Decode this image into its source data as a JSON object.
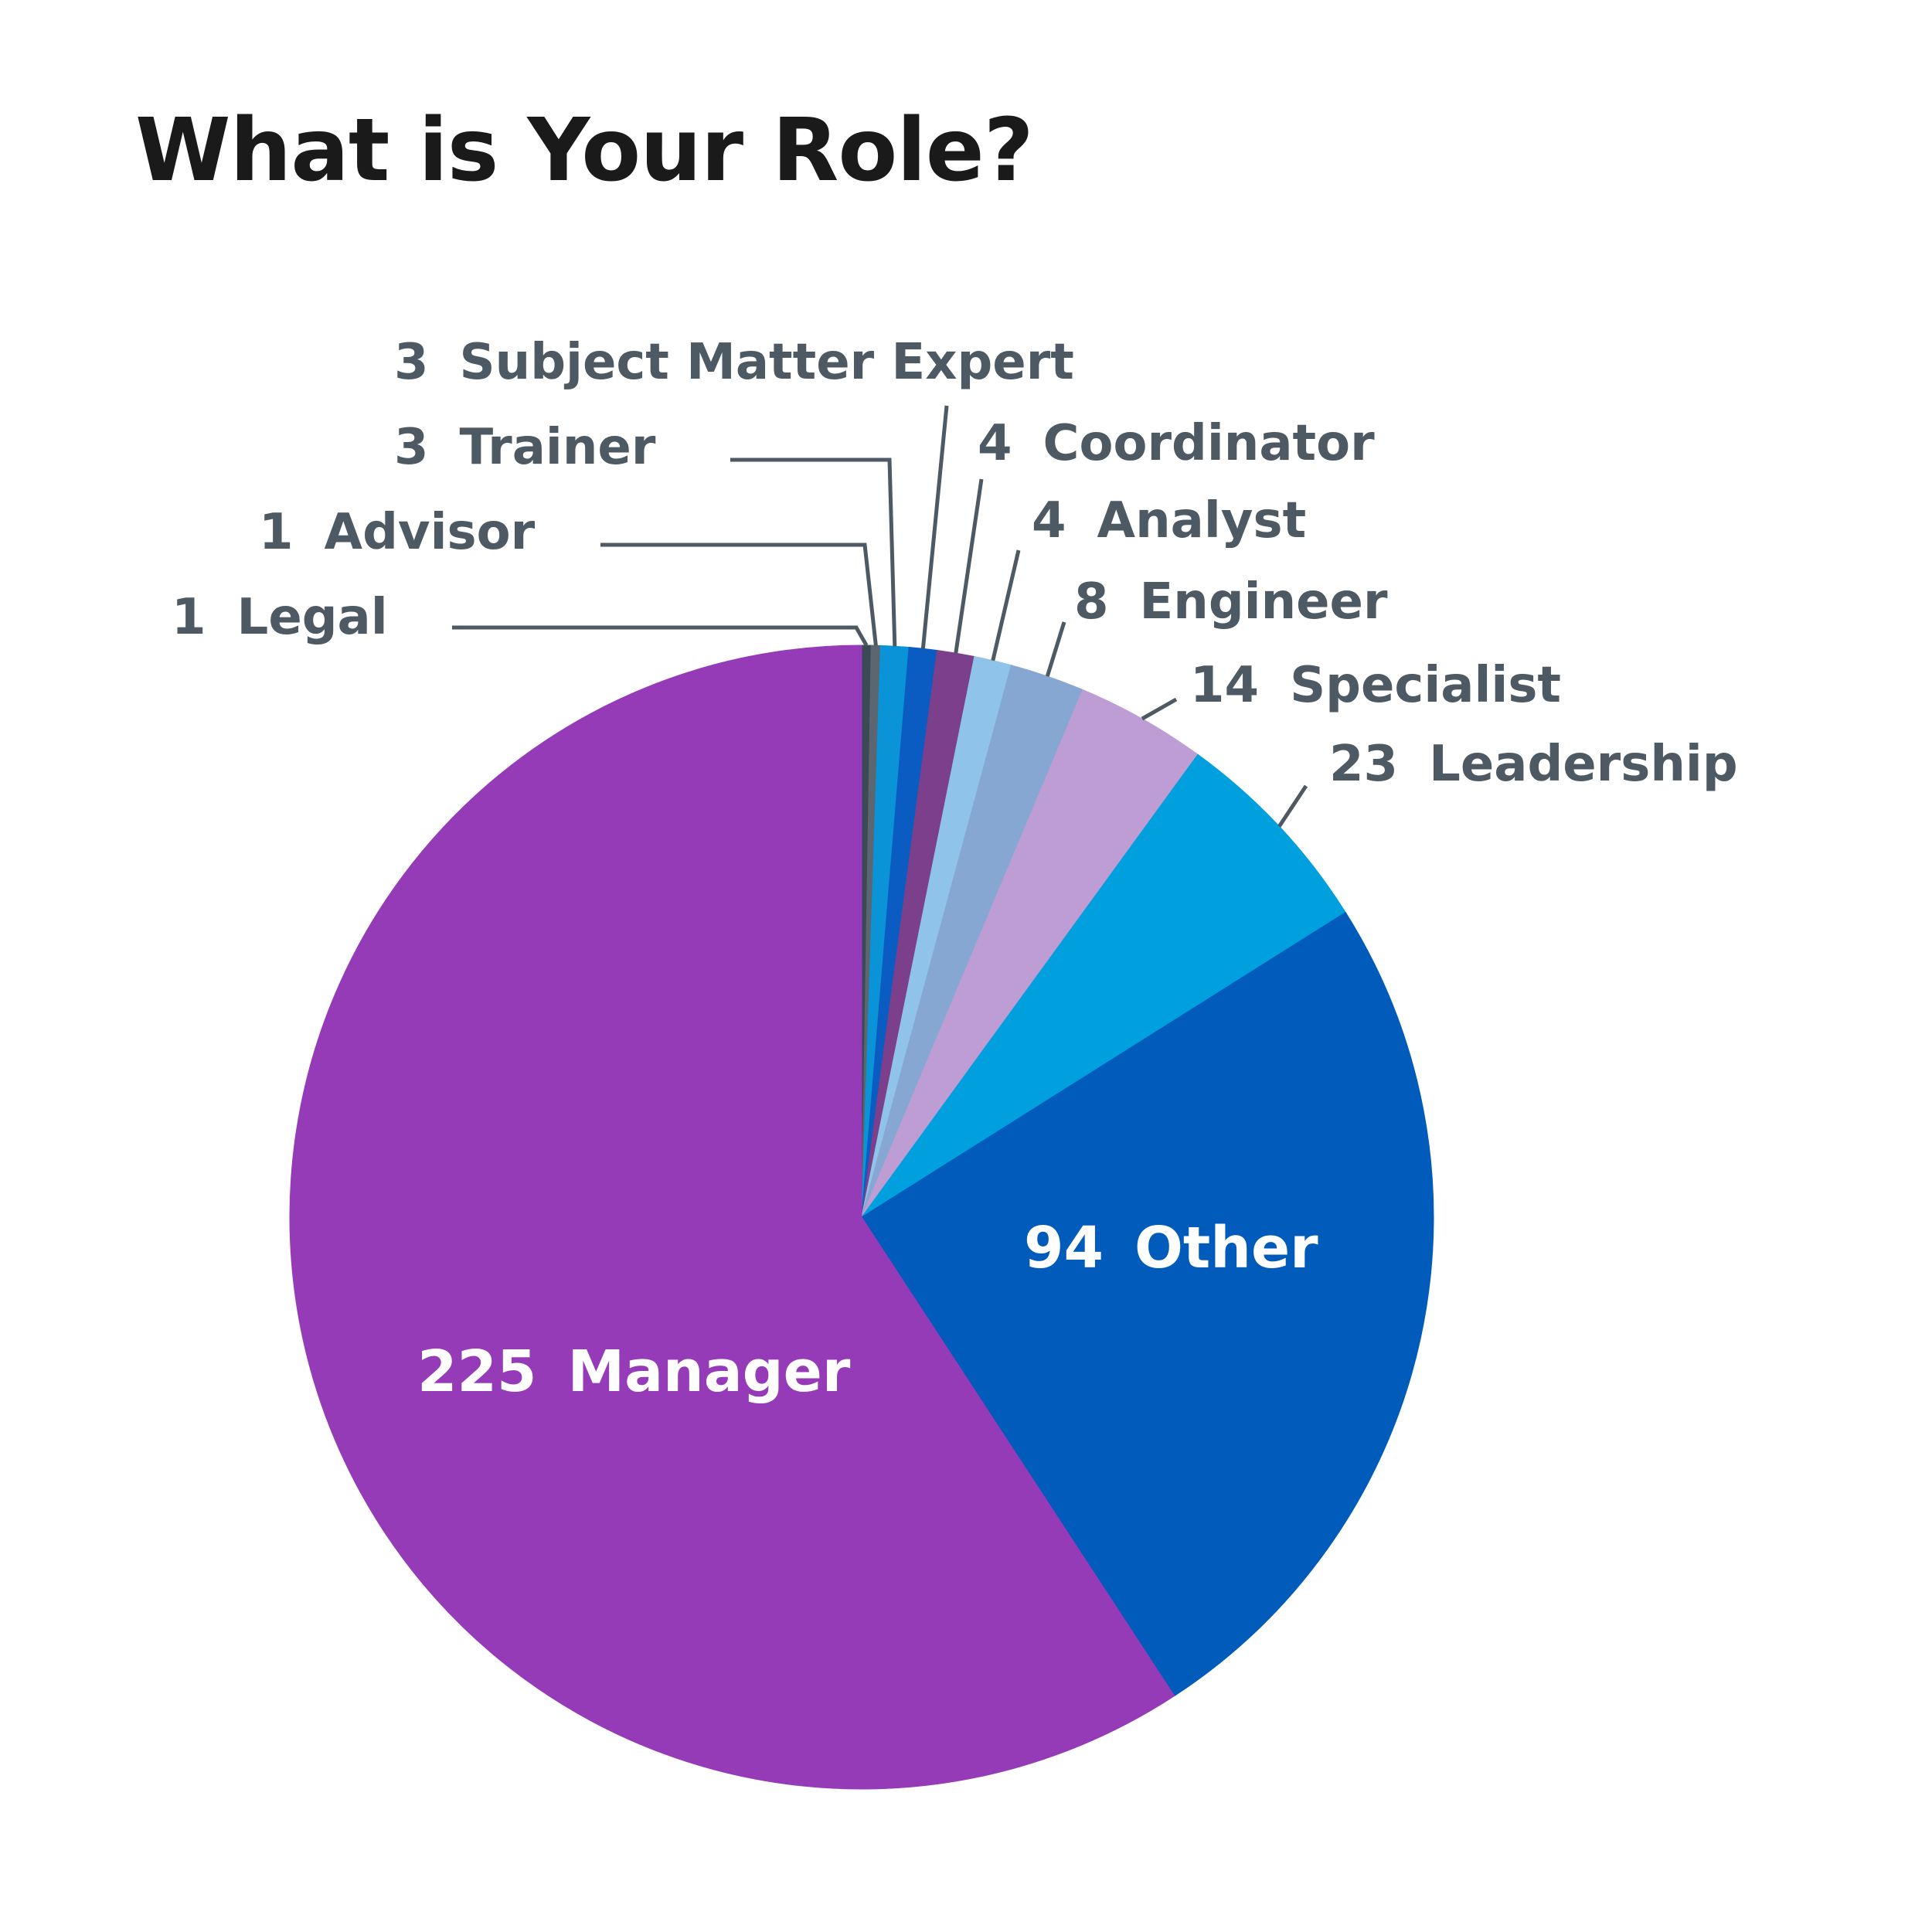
{
  "chart_data": {
    "type": "pie",
    "title": "What is Your Role?",
    "slices": [
      {
        "label": "Legal",
        "value": 1,
        "color": "#3b4a56"
      },
      {
        "label": "Advisor",
        "value": 1,
        "color": "#5c6670"
      },
      {
        "label": "Trainer",
        "value": 3,
        "color": "#0a93d6"
      },
      {
        "label": "Subject Matter Expert",
        "value": 3,
        "color": "#0a5cc2"
      },
      {
        "label": "Coordinator",
        "value": 4,
        "color": "#7b3f8c"
      },
      {
        "label": "Analyst",
        "value": 4,
        "color": "#8fc3ea"
      },
      {
        "label": "Engineer",
        "value": 8,
        "color": "#87a7d3"
      },
      {
        "label": "Specialist",
        "value": 14,
        "color": "#bd9dd3"
      },
      {
        "label": "Leadership",
        "value": 23,
        "color": "#00a0de"
      },
      {
        "label": "Other",
        "value": 94,
        "color": "#005bbb"
      },
      {
        "label": "Manager",
        "value": 225,
        "color": "#953bb8"
      }
    ],
    "label_colors": {
      "outside": "#4d5963",
      "inside": "#ffffff"
    }
  }
}
